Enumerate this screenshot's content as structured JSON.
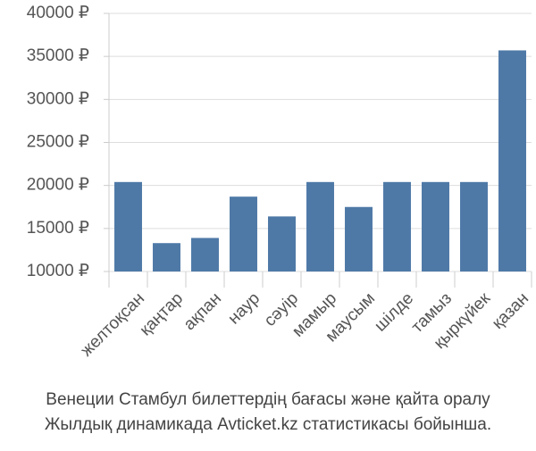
{
  "chart_data": {
    "type": "bar",
    "title": [
      "Венеции Стамбул билеттердің бағасы және қайта оралу",
      "Жылдық динамикада Avticket.kz статистикасы бойынша."
    ],
    "categories": [
      "желтоқсан",
      "қаңтар",
      "ақпан",
      "наур",
      "сәуір",
      "мамыр",
      "маусым",
      "шілде",
      "тамыз",
      "қыркүйек",
      "қазан"
    ],
    "values": [
      20400,
      13300,
      13900,
      18700,
      16400,
      20400,
      17500,
      20400,
      20400,
      20400,
      35700
    ],
    "color": "#4e79a7",
    "ylim": [
      10000,
      40000
    ],
    "yticks": [
      {
        "value": 10000,
        "label": "10000 ₽"
      },
      {
        "value": 15000,
        "label": "15000 ₽"
      },
      {
        "value": 20000,
        "label": "20000 ₽"
      },
      {
        "value": 25000,
        "label": "25000 ₽"
      },
      {
        "value": 30000,
        "label": "30000 ₽"
      },
      {
        "value": 35000,
        "label": "35000 ₽"
      },
      {
        "value": 40000,
        "label": "40000 ₽"
      }
    ],
    "grid": true
  }
}
